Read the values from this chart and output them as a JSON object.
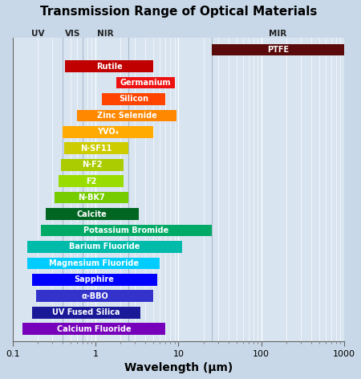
{
  "title": "Transmission Range of Optical Materials",
  "xlabel": "Wavelength (μm)",
  "background_color": "#c8d8e8",
  "plot_bg_color": "#d8e4f0",
  "region_centers": [
    {
      "text": "UV",
      "xmin": 0.1,
      "xmax": 0.4
    },
    {
      "text": "VIS",
      "xmin": 0.4,
      "xmax": 0.7
    },
    {
      "text": "NIR",
      "xmin": 0.7,
      "xmax": 2.5
    },
    {
      "text": "MIR",
      "xmin": 25.0,
      "xmax": 1000.0
    }
  ],
  "region_lines": [
    0.4,
    0.7,
    2.5,
    25.0
  ],
  "bars": [
    {
      "label": "PTFE",
      "xmin": 25.0,
      "xmax": 1000.0,
      "color": "#5a0a0a",
      "text_color": "white",
      "y": 18
    },
    {
      "label": "Rutile",
      "xmin": 0.43,
      "xmax": 5.0,
      "color": "#c00000",
      "text_color": "white",
      "y": 17
    },
    {
      "label": "Germanium",
      "xmin": 1.8,
      "xmax": 9.0,
      "color": "#ee1111",
      "text_color": "white",
      "y": 16
    },
    {
      "label": "Silicon",
      "xmin": 1.2,
      "xmax": 7.0,
      "color": "#ff4400",
      "text_color": "white",
      "y": 15
    },
    {
      "label": "Zinc Selenide",
      "xmin": 0.6,
      "xmax": 9.5,
      "color": "#ff8800",
      "text_color": "white",
      "y": 14
    },
    {
      "label": "YVO₄",
      "xmin": 0.4,
      "xmax": 5.0,
      "color": "#ffaa00",
      "text_color": "white",
      "y": 13
    },
    {
      "label": "N-SF11",
      "xmin": 0.42,
      "xmax": 2.5,
      "color": "#cccc00",
      "text_color": "white",
      "y": 12
    },
    {
      "label": "N-F2",
      "xmin": 0.38,
      "xmax": 2.2,
      "color": "#aacc00",
      "text_color": "white",
      "y": 11
    },
    {
      "label": "F2",
      "xmin": 0.36,
      "xmax": 2.2,
      "color": "#99dd00",
      "text_color": "white",
      "y": 10
    },
    {
      "label": "N-BK7",
      "xmin": 0.32,
      "xmax": 2.5,
      "color": "#77cc00",
      "text_color": "white",
      "y": 9
    },
    {
      "label": "Calcite",
      "xmin": 0.25,
      "xmax": 3.3,
      "color": "#006622",
      "text_color": "white",
      "y": 8
    },
    {
      "label": "Potassium Bromide",
      "xmin": 0.22,
      "xmax": 25.0,
      "color": "#00aa66",
      "text_color": "white",
      "y": 7
    },
    {
      "label": "Barium Fluoride",
      "xmin": 0.15,
      "xmax": 11.0,
      "color": "#00bbaa",
      "text_color": "white",
      "y": 6
    },
    {
      "label": "Magnesium Fluoride",
      "xmin": 0.15,
      "xmax": 6.0,
      "color": "#00ccff",
      "text_color": "white",
      "y": 5
    },
    {
      "label": "Sapphire",
      "xmin": 0.17,
      "xmax": 5.5,
      "color": "#0000ff",
      "text_color": "white",
      "y": 4
    },
    {
      "label": "α-BBO",
      "xmin": 0.19,
      "xmax": 5.0,
      "color": "#3333cc",
      "text_color": "white",
      "y": 3
    },
    {
      "label": "UV Fused Silica",
      "xmin": 0.17,
      "xmax": 3.5,
      "color": "#1a1a99",
      "text_color": "white",
      "y": 2
    },
    {
      "label": "Calcium Fluoride",
      "xmin": 0.13,
      "xmax": 7.0,
      "color": "#7700bb",
      "text_color": "white",
      "y": 1
    }
  ],
  "xlim": [
    0.1,
    1000
  ],
  "ylim": [
    0.25,
    18.75
  ],
  "bar_height": 0.72,
  "title_fontsize": 11,
  "label_fontsize": 7,
  "tick_fontsize": 8,
  "axis_label_fontsize": 10
}
